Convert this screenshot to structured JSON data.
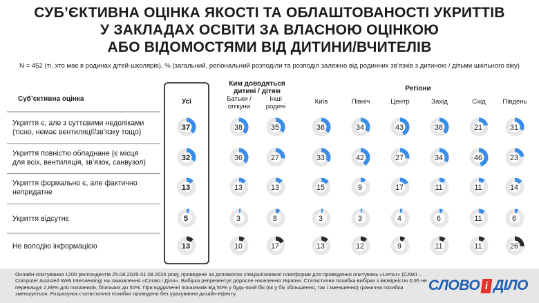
{
  "title_lines": [
    "СУБ’ЄКТИВНА ОЦІНКА ЯКОСТІ ТА ОБЛАШТОВАНОСТІ УКРИТТІВ",
    "У ЗАКЛАДАХ ОСВІТИ ЗА ВЛАСНОЮ ОЦІНКОЮ",
    "АБО ВІДОМОСТЯМИ ВІД ДИТИНИ/ВЧИТЕЛІВ"
  ],
  "subtitle": "N = 452 (ті, хто має в родинах дітей-школярів), % (загальний, регіональний розподіли та розподіл залежно від родинних зв’язків з дитиною / дітьми шкільного віку)",
  "chart_data": {
    "type": "table",
    "row_header": "Суб’єктивна оцінка",
    "group_headers": {
      "relation": [
        "Ким доводяться",
        "дитині / дітям"
      ],
      "regions": "Регіони"
    },
    "categories": [
      [
        "Укриття є, але з суттєвими недоліками",
        "(тісно, немає вентиляції/зв’язку тощо)"
      ],
      [
        "Укриття повністю обладнане (є місця",
        "для всіх, вентиляція, зв’язок, санвузол)"
      ],
      [
        "Укриття формально є, але фактично",
        "непридатне"
      ],
      [
        "Укриття відсутнє"
      ],
      [
        "Не володію інформацією"
      ]
    ],
    "series": [
      {
        "name": [
          "Усі"
        ],
        "values": [
          37,
          32,
          13,
          5,
          13
        ],
        "highlight": true
      },
      {
        "name": [
          "Батьки /",
          "опікуни"
        ],
        "values": [
          38,
          36,
          13,
          3,
          10
        ]
      },
      {
        "name": [
          "Інші",
          "родичі"
        ],
        "values": [
          35,
          27,
          13,
          8,
          17
        ]
      },
      {
        "name": [
          "Київ"
        ],
        "values": [
          36,
          33,
          15,
          3,
          13
        ]
      },
      {
        "name": [
          "Північ"
        ],
        "values": [
          34,
          42,
          9,
          3,
          12
        ]
      },
      {
        "name": [
          "Центр"
        ],
        "values": [
          43,
          27,
          17,
          4,
          9
        ]
      },
      {
        "name": [
          "Захід"
        ],
        "values": [
          38,
          34,
          11,
          6,
          11
        ]
      },
      {
        "name": [
          "Схід"
        ],
        "values": [
          21,
          46,
          11,
          11,
          11
        ]
      },
      {
        "name": [
          "Південь"
        ],
        "values": [
          31,
          23,
          14,
          6,
          26
        ]
      }
    ],
    "scale_max": 100,
    "colors": {
      "blue": "#3b8ee8",
      "dark": "#2b2b2b",
      "track": "#e7e7e7",
      "divider": "#8a8a8a",
      "highlight_border": "#111111"
    }
  },
  "footer": {
    "note": "Онлайн-опитування 1200 респондентів 25.08.2026-31.08.2026 року, проведене за допомогою спеціалізованої платформи для проведення опитувань «Lemur» (CAWI – Computer Assisted Web Interviewing) на замовлення «Слово і Діло». Вибірка репрезентує доросле населення України. Статистична похибка вибірки з імовірністю 0,95 не перевищує 2,89% для показників, близьких до 50%. При віддаленні показників від 50% у будь-який бік (як у бік збільшення, так і зменшення) гранична похибка зменшується. Розрахунок статистичної похибки проведено без урахування дизайн-ефекту.",
    "logo_left": "СЛОВО",
    "logo_mid": "і",
    "logo_right": "ДІЛО"
  }
}
